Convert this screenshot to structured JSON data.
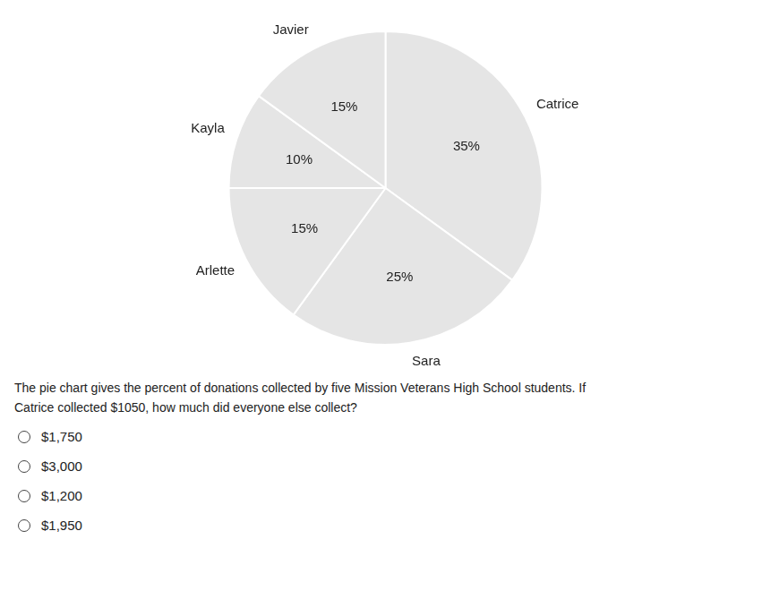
{
  "chart_data": {
    "type": "pie",
    "categories": [
      "Catrice",
      "Sara",
      "Arlette",
      "Kayla",
      "Javier"
    ],
    "values": [
      35,
      25,
      15,
      10,
      15
    ],
    "value_labels": [
      "35%",
      "25%",
      "15%",
      "10%",
      "15%"
    ],
    "data_labels": true,
    "annotations": [
      {
        "text": "The pie chart gives the percent of donations collected by five Mission Veterans High School students. If"
      },
      {
        "text": "Catrice collected $1050, how much did everyone else collect?"
      },
      {
        "text": "$1,750",
        "marker": "radio"
      },
      {
        "text": "$3,000",
        "marker": "radio"
      },
      {
        "text": "$1,200",
        "marker": "radio"
      },
      {
        "text": "$1,950",
        "marker": "radio"
      }
    ]
  }
}
